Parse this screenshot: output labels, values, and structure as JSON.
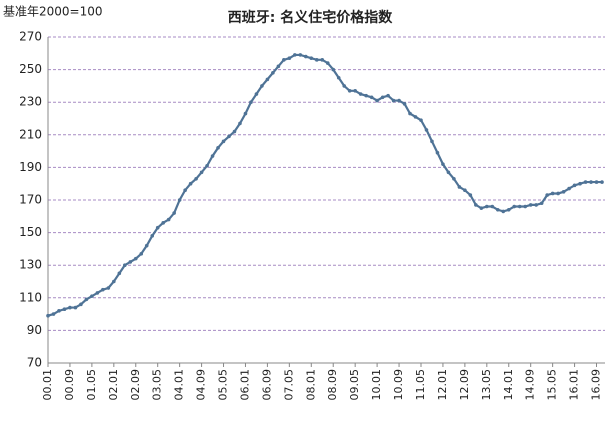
{
  "chart_data": {
    "type": "line",
    "title": "西班牙: 名义住宅价格指数",
    "y_label": "基准年2000=100",
    "categories": [
      "00.01",
      null,
      null,
      null,
      "00.09",
      null,
      null,
      null,
      "01.05",
      null,
      null,
      null,
      "02.01",
      null,
      null,
      null,
      "02.09",
      null,
      null,
      null,
      "03.05",
      null,
      null,
      null,
      "04.01",
      null,
      null,
      null,
      "04.09",
      null,
      null,
      null,
      "05.05",
      null,
      null,
      null,
      "06.01",
      null,
      null,
      null,
      "06.09",
      null,
      null,
      null,
      "07.05",
      null,
      null,
      null,
      "08.01",
      null,
      null,
      null,
      "08.09",
      null,
      null,
      null,
      "09.05",
      null,
      null,
      null,
      "10.01",
      null,
      null,
      null,
      "10.09",
      null,
      null,
      null,
      "11.05",
      null,
      null,
      null,
      "12.01",
      null,
      null,
      null,
      "12.09",
      null,
      null,
      null,
      "13.05",
      null,
      null,
      null,
      "14.01",
      null,
      null,
      null,
      "14.09",
      null,
      null,
      null,
      "15.05",
      null,
      null,
      null,
      "16.01",
      null,
      null,
      null,
      "16.09",
      null
    ],
    "values": [
      99,
      100,
      102,
      103,
      104,
      104,
      106,
      109,
      111,
      113,
      115,
      116,
      120,
      125,
      130,
      132,
      134,
      137,
      142,
      148,
      153,
      156,
      158,
      162,
      170,
      176,
      180,
      183,
      187,
      191,
      197,
      202,
      206,
      209,
      212,
      217,
      223,
      230,
      235,
      240,
      244,
      248,
      252,
      256,
      257,
      259,
      259,
      258,
      257,
      256,
      256,
      254,
      250,
      245,
      240,
      237,
      237,
      235,
      234,
      233,
      231,
      233,
      234,
      231,
      231,
      229,
      223,
      221,
      219,
      213,
      206,
      199,
      192,
      187,
      183,
      178,
      176,
      173,
      167,
      165,
      166,
      166,
      164,
      163,
      164,
      166,
      166,
      166,
      167,
      167,
      168,
      173,
      174,
      174,
      175,
      177,
      179,
      180,
      181,
      181,
      181,
      181
    ],
    "color": "#4f7396",
    "grid_color": "#a78bc4",
    "ylim": [
      70,
      270
    ],
    "yticks": [
      70,
      90,
      110,
      130,
      150,
      170,
      190,
      210,
      230,
      250,
      270
    ],
    "grid": true
  }
}
